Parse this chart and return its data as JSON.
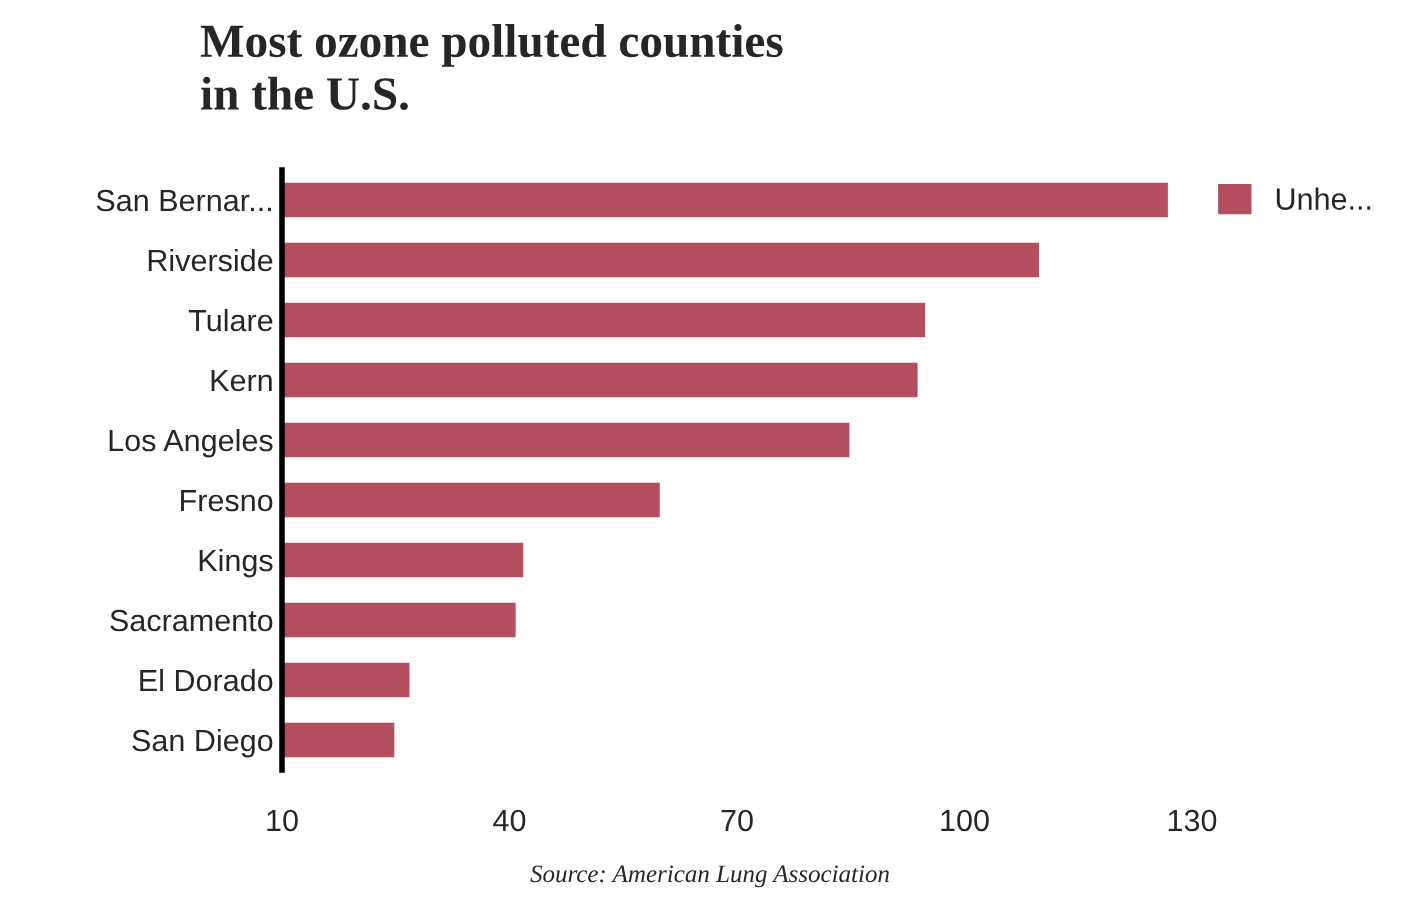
{
  "chart_data": {
    "type": "bar",
    "orientation": "horizontal",
    "title": "Most ozone polluted counties\nin the U.S.",
    "categories": [
      "San Bernar...",
      "Riverside",
      "Tulare",
      "Kern",
      "Los Angeles",
      "Fresno",
      "Kings",
      "Sacramento",
      "El Dorado",
      "San Diego"
    ],
    "series": [
      {
        "name": "Unhe...",
        "color": "#b34f5f",
        "values": [
          127,
          110,
          95,
          94,
          85,
          60,
          42,
          41,
          27,
          25
        ]
      }
    ],
    "xlim": [
      10,
      130
    ],
    "xticks": [
      10,
      40,
      70,
      100,
      130
    ],
    "grid": false,
    "legend": "top right",
    "annotations": [
      "Source: American Lung Association"
    ]
  }
}
